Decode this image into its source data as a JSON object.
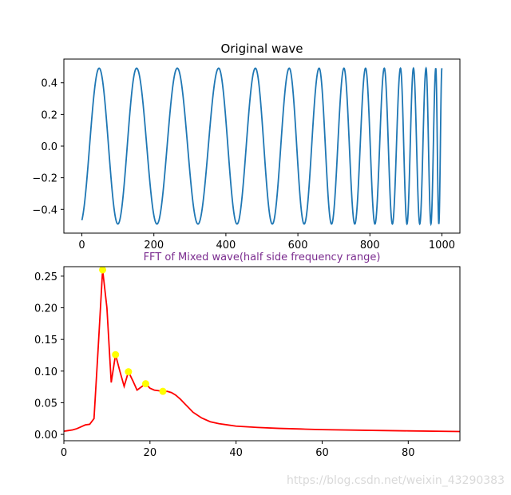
{
  "chart_data": [
    {
      "type": "line",
      "title": "Original wave",
      "xlabel": "",
      "ylabel": "",
      "xlim": [
        -50,
        1050
      ],
      "ylim": [
        -0.55,
        0.55
      ],
      "xticks": [
        0,
        200,
        400,
        600,
        800,
        1000
      ],
      "yticks": [
        -0.4,
        -0.2,
        0.0,
        0.2,
        0.4
      ],
      "ytick_labels": [
        "−0.4",
        "−0.2",
        "0.0",
        "0.2",
        "0.4"
      ],
      "grid": false,
      "line_color": "#1f77b4",
      "series": [
        {
          "description": "chirp-like sine, amplitude 0.5, x from 0 to 1000, frequency increasing",
          "amplitude": 0.5,
          "x_start": 0,
          "x_end": 1000,
          "peak_x": [
            48,
            152,
            265,
            380,
            482,
            576,
            659,
            728,
            788,
            840,
            885,
            921,
            956,
            983,
            1000
          ]
        }
      ]
    },
    {
      "type": "line",
      "title": "FFT of Mixed wave(half side frequency range)",
      "title_color": "#7b2c8f",
      "xlabel": "",
      "ylabel": "",
      "xlim": [
        0,
        92
      ],
      "ylim": [
        -0.01,
        0.265
      ],
      "xticks": [
        0,
        20,
        40,
        60,
        80
      ],
      "yticks": [
        0.0,
        0.05,
        0.1,
        0.15,
        0.2,
        0.25
      ],
      "ytick_labels": [
        "0.00",
        "0.05",
        "0.10",
        "0.15",
        "0.20",
        "0.25"
      ],
      "grid": false,
      "line_color": "#ff0000",
      "marker_color": "#ffff00",
      "series": [
        {
          "x": [
            0,
            1,
            2,
            3,
            4,
            5,
            6,
            7,
            8,
            9,
            10,
            11,
            12,
            13,
            14,
            15,
            16,
            17,
            18,
            19,
            20,
            21,
            22,
            23,
            24,
            25,
            26,
            27,
            28,
            29,
            30,
            32,
            34,
            36,
            38,
            40,
            45,
            50,
            55,
            60,
            70,
            80,
            92
          ],
          "y": [
            0.005,
            0.006,
            0.007,
            0.009,
            0.012,
            0.015,
            0.016,
            0.025,
            0.14,
            0.26,
            0.2,
            0.082,
            0.126,
            0.1,
            0.076,
            0.099,
            0.085,
            0.07,
            0.075,
            0.08,
            0.073,
            0.07,
            0.069,
            0.068,
            0.068,
            0.066,
            0.062,
            0.056,
            0.049,
            0.042,
            0.035,
            0.026,
            0.02,
            0.017,
            0.015,
            0.013,
            0.011,
            0.0095,
            0.0085,
            0.0075,
            0.0065,
            0.0055,
            0.0045
          ]
        }
      ],
      "markers": {
        "x": [
          9,
          12,
          15,
          19,
          23
        ],
        "y": [
          0.26,
          0.126,
          0.099,
          0.08,
          0.068
        ]
      }
    }
  ],
  "watermark": "https://blog.csdn.net/weixin_43290383"
}
